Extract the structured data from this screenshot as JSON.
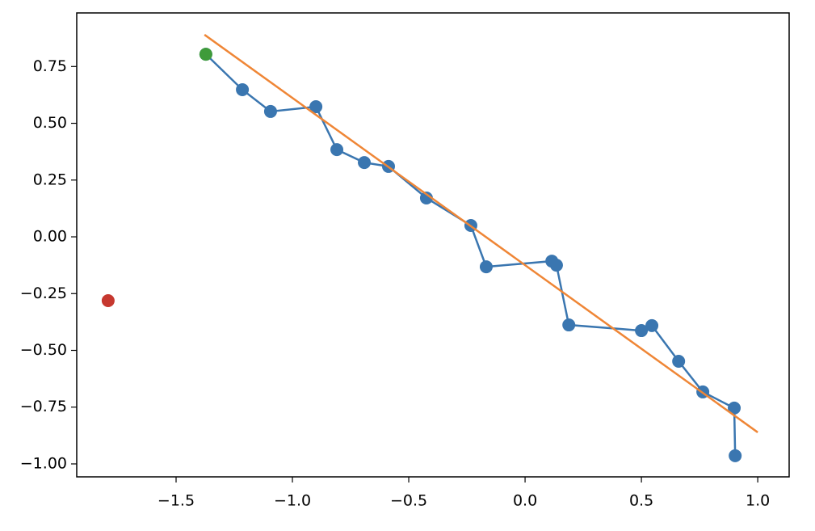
{
  "chart_data": {
    "type": "line",
    "xlim": [
      -1.927,
      1.135
    ],
    "ylim": [
      -1.057,
      0.986
    ],
    "xticks": [
      {
        "value": -1.5,
        "label": "−1.5"
      },
      {
        "value": -1.0,
        "label": "−1.0"
      },
      {
        "value": -0.5,
        "label": "−0.5"
      },
      {
        "value": 0,
        "label": "0.0"
      },
      0.5,
      {
        "value": 1.0,
        "label": "1.0"
      }
    ],
    "yticks": [
      {
        "value": -1.0,
        "label": "−1.00"
      },
      {
        "value": -0.75,
        "label": "−0.75"
      },
      {
        "value": -0.5,
        "label": "−0.50"
      },
      {
        "value": -0.25,
        "label": "−0.25"
      },
      {
        "value": 0,
        "label": "0.00"
      },
      {
        "value": 0.25,
        "label": "0.25"
      },
      {
        "value": 0.5,
        "label": "0.50"
      },
      {
        "value": 0.75,
        "label": "0.75"
      }
    ],
    "grid": false,
    "series": [
      {
        "style": "line-markers",
        "color": "#3a76b0",
        "x": [
          -1.372,
          -1.215,
          -1.094,
          -0.899,
          -0.809,
          -0.691,
          -0.587,
          -0.424,
          -0.233,
          -0.167,
          0.115,
          0.135,
          0.188,
          0.5,
          0.545,
          0.66,
          0.764,
          0.899,
          0.903
        ],
        "values": [
          0.804,
          0.648,
          0.552,
          0.573,
          0.384,
          0.327,
          0.31,
          0.171,
          0.05,
          -0.132,
          -0.107,
          -0.125,
          -0.388,
          -0.413,
          -0.391,
          -0.548,
          -0.683,
          -0.754,
          -0.964
        ]
      },
      {
        "style": "line",
        "color": "#ef8636",
        "x": [
          -1.378,
          1.0
        ],
        "values": [
          0.89,
          -0.861
        ]
      },
      {
        "style": "markers",
        "color": "#3f9b3a",
        "x": [
          -1.372
        ],
        "values": [
          0.804
        ]
      },
      {
        "style": "markers",
        "color": "#c6382f",
        "x": [
          -1.792
        ],
        "values": [
          -0.281
        ]
      }
    ]
  }
}
